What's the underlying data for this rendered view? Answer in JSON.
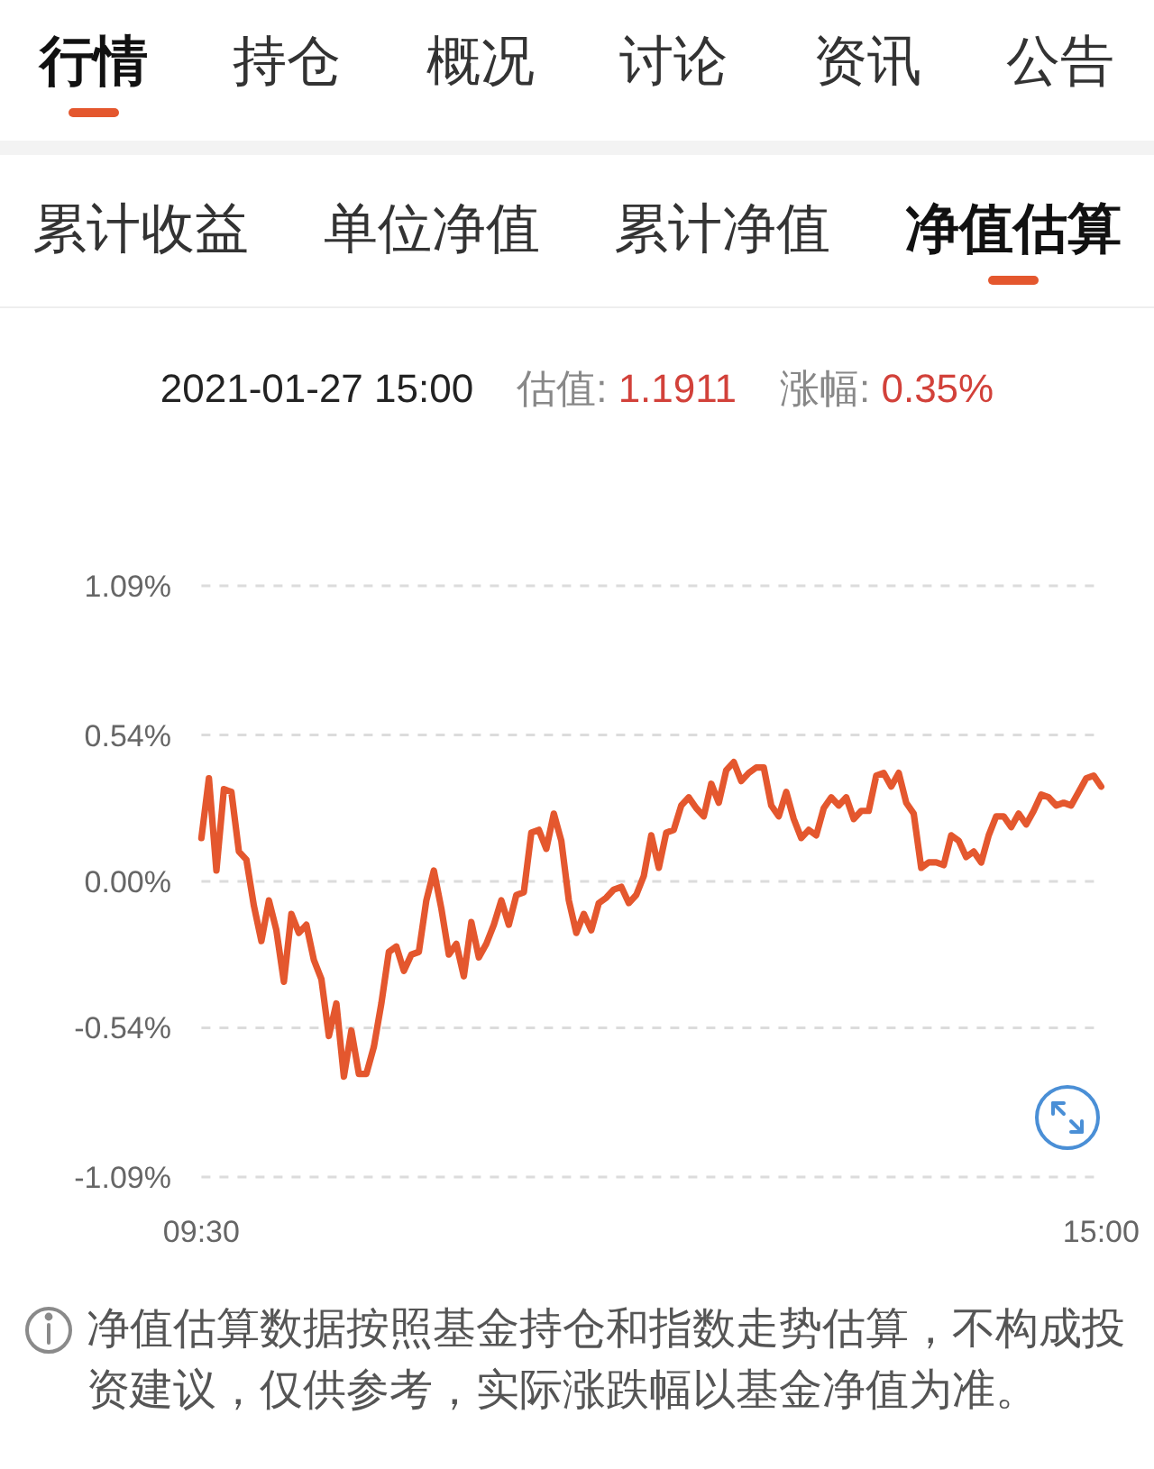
{
  "chart_data": [
    {
      "type": "other",
      "categories": [
        "行情",
        "持仓",
        "概况",
        "讨论",
        "资讯",
        "公告"
      ]
    },
    {
      "type": "other",
      "categories": [
        "累计收益",
        "单位净值",
        "累计净值",
        "净值估算"
      ]
    },
    {
      "type": "line",
      "title": "2021-01-27 15:00",
      "annotations": [
        "估值: 1.1911",
        "涨幅: 0.35%",
        "净值估算数据按照基金持仓和指数走势估算，不构成投资建议，仅供参考，实际涨跌幅以基金净值为准。"
      ],
      "categories": [
        "09:30",
        null,
        null,
        null,
        null,
        null,
        null,
        null,
        null,
        null,
        null,
        null,
        null,
        null,
        null,
        null,
        null,
        null,
        null,
        null,
        null,
        null,
        null,
        null,
        null,
        null,
        null,
        null,
        null,
        null,
        null,
        null,
        null,
        null,
        null,
        null,
        null,
        null,
        null,
        null,
        null,
        null,
        null,
        null,
        null,
        null,
        null,
        null,
        null,
        null,
        null,
        null,
        null,
        null,
        null,
        null,
        null,
        null,
        null,
        null,
        null,
        null,
        null,
        null,
        null,
        null,
        null,
        null,
        null,
        null,
        null,
        null,
        null,
        null,
        null,
        null,
        null,
        null,
        null,
        null,
        null,
        null,
        null,
        null,
        null,
        null,
        null,
        null,
        null,
        null,
        null,
        null,
        null,
        null,
        null,
        null,
        null,
        null,
        null,
        null,
        null,
        null,
        null,
        null,
        null,
        null,
        null,
        null,
        null,
        null,
        null,
        null,
        null,
        null,
        null,
        null,
        null,
        null,
        null,
        null,
        "15:00"
      ],
      "series": [
        {
          "color": "#e4572e",
          "values": [
            0.16,
            0.38,
            0.04,
            0.34,
            0.33,
            0.11,
            0.08,
            -0.09,
            -0.22,
            -0.07,
            -0.18,
            -0.37,
            -0.12,
            -0.19,
            -0.16,
            -0.29,
            -0.36,
            -0.57,
            -0.45,
            -0.72,
            -0.55,
            -0.71,
            -0.71,
            -0.61,
            -0.45,
            -0.26,
            -0.24,
            -0.33,
            -0.27,
            -0.26,
            -0.07,
            0.04,
            -0.1,
            -0.27,
            -0.23,
            -0.35,
            -0.15,
            -0.28,
            -0.23,
            -0.16,
            -0.07,
            -0.16,
            -0.05,
            -0.04,
            0.18,
            0.19,
            0.12,
            0.25,
            0.15,
            -0.07,
            -0.19,
            -0.12,
            -0.18,
            -0.08,
            -0.06,
            -0.03,
            -0.02,
            -0.08,
            -0.05,
            0.02,
            0.17,
            0.05,
            0.18,
            0.19,
            0.28,
            0.31,
            0.27,
            0.24,
            0.36,
            0.29,
            0.41,
            0.44,
            0.37,
            0.4,
            0.42,
            0.42,
            0.28,
            0.24,
            0.33,
            0.23,
            0.16,
            0.19,
            0.17,
            0.27,
            0.31,
            0.28,
            0.31,
            0.23,
            0.26,
            0.26,
            0.39,
            0.4,
            0.35,
            0.4,
            0.29,
            0.25,
            0.05,
            0.07,
            0.07,
            0.06,
            0.17,
            0.15,
            0.09,
            0.11,
            0.07,
            0.17,
            0.24,
            0.24,
            0.2,
            0.25,
            0.21,
            0.26,
            0.32,
            0.31,
            0.28,
            0.29,
            0.28,
            0.33,
            0.38,
            0.39,
            0.35
          ]
        }
      ],
      "ylim": [
        -1.09,
        1.09
      ],
      "yticks": [
        {
          "value": 1.09,
          "label": "1.09%"
        },
        {
          "value": 0.54,
          "label": "0.54%"
        },
        {
          "value": 0,
          "label": "0.00%"
        },
        {
          "value": -0.54,
          "label": "-0.54%"
        },
        {
          "value": -1.09,
          "label": "-1.09%"
        }
      ],
      "grid": "y"
    }
  ]
}
